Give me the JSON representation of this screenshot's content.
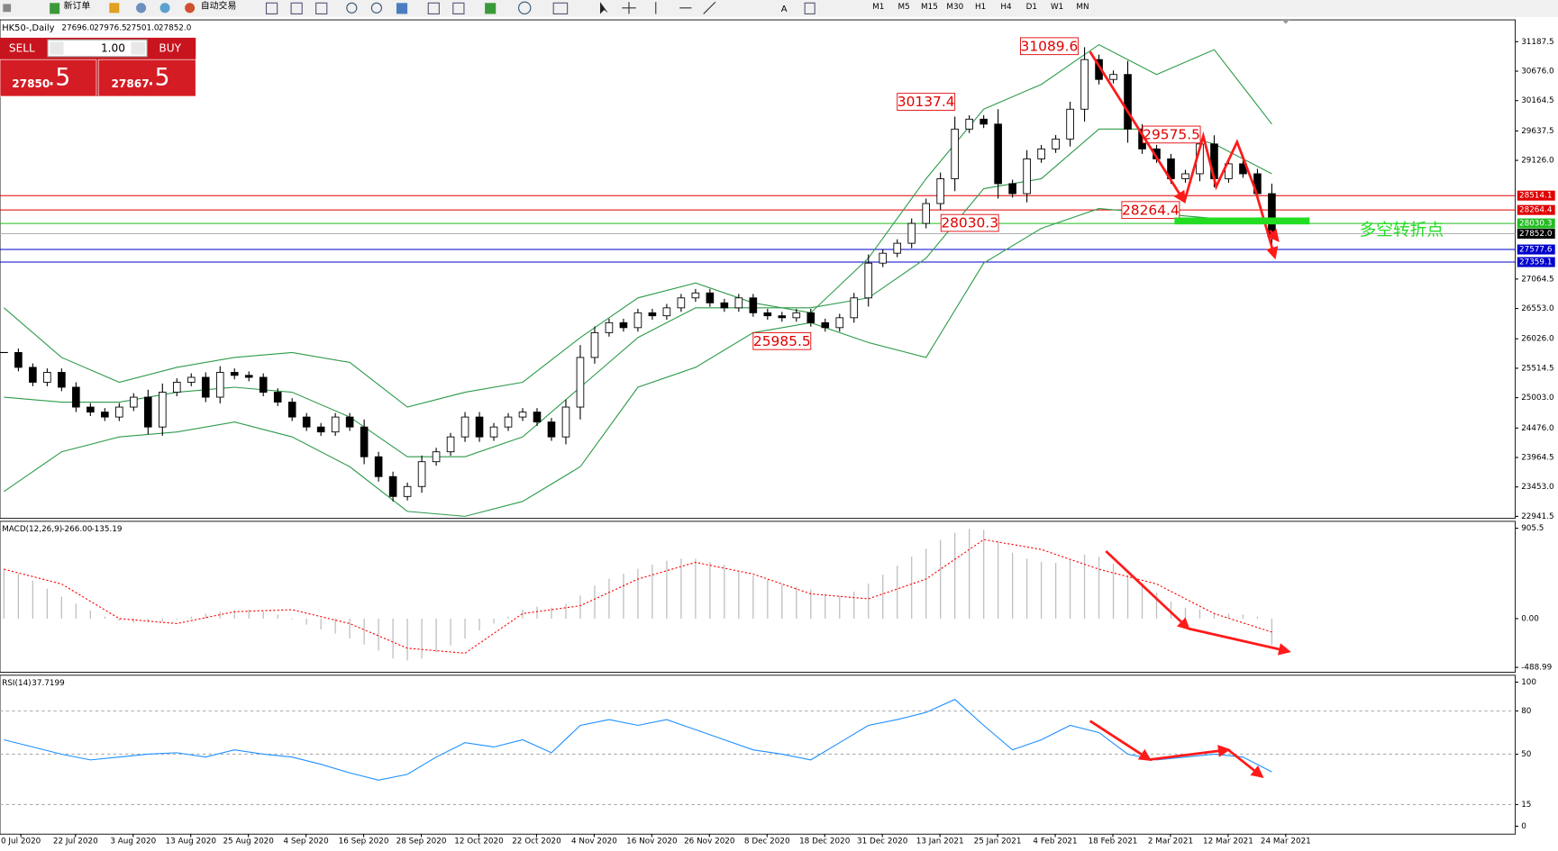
{
  "toolbar": {
    "new_order": "新订单",
    "auto_trading": "自动交易",
    "timeframes": [
      "M1",
      "M5",
      "M15",
      "M30",
      "H1",
      "H4",
      "D1",
      "W1",
      "MN"
    ]
  },
  "trade_panel": {
    "sell": "SELL",
    "buy": "BUY",
    "lots": "1.00",
    "sell_price": "27850",
    "sell_pips": ".5",
    "buy_price": "27867",
    "buy_pips": ".5"
  },
  "chart_data": [
    {
      "type": "candlestick",
      "title": "HK50-,Daily",
      "ohlc": [
        {
          "value": 27696,
          "label": "27696.0"
        },
        {
          "value": 27976.5,
          "label": "27976.5"
        },
        {
          "value": 27501,
          "label": "27501.0"
        },
        {
          "value": 27852,
          "label": "27852.0"
        }
      ],
      "closes": [
        25788,
        25530,
        25271,
        25443,
        25185,
        24840,
        24753,
        24667,
        24840,
        25012,
        24494,
        25098,
        25271,
        25357,
        25012,
        25443,
        25391,
        25357,
        25098,
        24926,
        24667,
        24494,
        24408,
        24667,
        24494,
        23977,
        23632,
        23287,
        23460,
        23891,
        24063,
        24322,
        24667,
        24322,
        24494,
        24667,
        24753,
        24581,
        24322,
        24840,
        25702,
        26133,
        26306,
        26220,
        26478,
        26426,
        26564,
        26737,
        26823,
        26651,
        26564,
        26737,
        26478,
        26426,
        26392,
        26478,
        26306,
        26220,
        26392,
        26737,
        27341,
        27513,
        27686,
        28031,
        28376,
        28807,
        29670,
        29842,
        29756,
        28721,
        28548,
        29152,
        29325,
        29497,
        30015,
        30877,
        30532,
        30618,
        29670,
        29325,
        29152,
        28807,
        28893,
        29411,
        28807,
        29066,
        28893,
        28548,
        27852
      ],
      "color_up": "#ffffff",
      "color_down": "#000000",
      "bands": {
        "color": "#2e9b4a",
        "upper": [
          26564,
          25702,
          25271,
          25530,
          25702,
          25788,
          25616,
          24840,
          25098,
          25271,
          26047,
          26737,
          26996,
          26651,
          26478,
          27427,
          28807,
          30015,
          30446,
          31136,
          30618,
          31049,
          29756
        ],
        "middle": [
          25012,
          24926,
          24926,
          25098,
          25185,
          25098,
          24667,
          23977,
          23977,
          24322,
          25185,
          26047,
          26564,
          26564,
          26564,
          26737,
          27427,
          28634,
          28807,
          29670,
          29670,
          29411,
          28893
        ],
        "lower": [
          23373,
          24063,
          24322,
          24408,
          24581,
          24322,
          23804,
          23028,
          22942,
          23201,
          23804,
          25185,
          25530,
          26133,
          26306,
          25961,
          25702,
          27341,
          27944,
          28289,
          28203,
          28117,
          28031
        ]
      },
      "x_labels": [
        "0 Jul 2020",
        "22 Jul 2020",
        "3 Aug 2020",
        "13 Aug 2020",
        "25 Aug 2020",
        "4 Sep 2020",
        "16 Sep 2020",
        "28 Sep 2020",
        "12 Oct 2020",
        "22 Oct 2020",
        "4 Nov 2020",
        "16 Nov 2020",
        "26 Nov 2020",
        "8 Dec 2020",
        "18 Dec 2020",
        "31 Dec 2020",
        "13 Jan 2021",
        "25 Jan 2021",
        "4 Feb 2021",
        "18 Feb 2021",
        "2 Mar 2021",
        "12 Mar 2021",
        "24 Mar 2021"
      ],
      "ylim": [
        22907,
        31567
      ],
      "yticks": [
        31187.5,
        {
          "value": 30676,
          "label": "30676.0"
        },
        30164.5,
        29637.5,
        {
          "value": 29126,
          "label": "29126.0"
        },
        27064.5,
        {
          "value": 26553,
          "label": "26553.0"
        },
        {
          "value": 26026,
          "label": "26026.0"
        },
        25514.5,
        {
          "value": 25003,
          "label": "25003.0"
        },
        {
          "value": 24476,
          "label": "24476.0"
        },
        23964.5,
        {
          "value": 23453,
          "label": "23453.0"
        },
        22941.5
      ],
      "levels": [
        {
          "price": 28514.1,
          "color": "#e00000"
        },
        {
          "price": 28264.4,
          "color": "#e00000"
        },
        {
          "price": 28030.3,
          "color": "#22bb22"
        },
        {
          "price": {
            "value": 27852,
            "label": "27852.0"
          },
          "color": "#000000"
        },
        {
          "price": 27577.6,
          "color": "#0000cc"
        },
        {
          "price": 27359.1,
          "color": "#0000cc"
        }
      ],
      "annotations": [
        31089.6,
        30137.4,
        28030.3,
        28264.4,
        29575.5,
        25985.5
      ],
      "note": "多空转折点"
    },
    {
      "type": "macd",
      "title": "MACD(12,26,9)",
      "readings": [
        {
          "value": -266,
          "label": "-266.00"
        },
        -135.19
      ],
      "histogram": [
        500,
        450,
        380,
        300,
        220,
        150,
        80,
        20,
        -20,
        -40,
        -40,
        -30,
        -10,
        20,
        50,
        70,
        80,
        90,
        70,
        40,
        -10,
        -60,
        -110,
        -150,
        -200,
        -260,
        -320,
        -400,
        -420,
        -400,
        -340,
        -270,
        -200,
        -120,
        -50,
        20,
        90,
        120,
        110,
        150,
        230,
        330,
        400,
        450,
        500,
        540,
        580,
        600,
        600,
        570,
        540,
        480,
        430,
        390,
        340,
        320,
        290,
        250,
        230,
        270,
        350,
        440,
        530,
        620,
        700,
        790,
        860,
        900,
        890,
        780,
        660,
        600,
        570,
        560,
        590,
        640,
        620,
        550,
        440,
        350,
        260,
        170,
        110,
        90,
        60,
        50,
        40,
        20,
        -266
      ],
      "signal": [
        495,
        347,
        0,
        -50,
        69,
        89,
        -50,
        -297,
        -347,
        50,
        129,
        396,
        564,
        446,
        248,
        198,
        396,
        792,
        693,
        495,
        347,
        50,
        -135.19
      ],
      "hist_color": "#c0c0c0",
      "signal_color": "#ff0000",
      "ylim": [
        -538,
        975
      ],
      "yticks": [
        905.5,
        {
          "value": 0,
          "label": "0.00"
        },
        -488.99
      ]
    },
    {
      "type": "rsi",
      "title": "RSI(14)",
      "reading": 37.7199,
      "values": [
        60,
        55,
        50,
        46,
        48,
        50,
        51,
        48,
        53,
        50,
        48,
        43,
        37,
        32,
        36,
        48,
        58,
        55,
        60,
        51,
        70,
        74,
        70,
        74,
        67,
        60,
        53,
        50,
        46,
        58,
        70,
        74,
        79,
        88,
        70,
        53,
        60,
        70,
        65,
        50,
        46,
        48,
        50,
        48,
        37.7199
      ],
      "color": "#1e90ff",
      "ylim": [
        -5.5,
        104.8
      ],
      "yticks": [
        100,
        80,
        50,
        15,
        0
      ],
      "levels": [
        80,
        50,
        15
      ]
    }
  ]
}
